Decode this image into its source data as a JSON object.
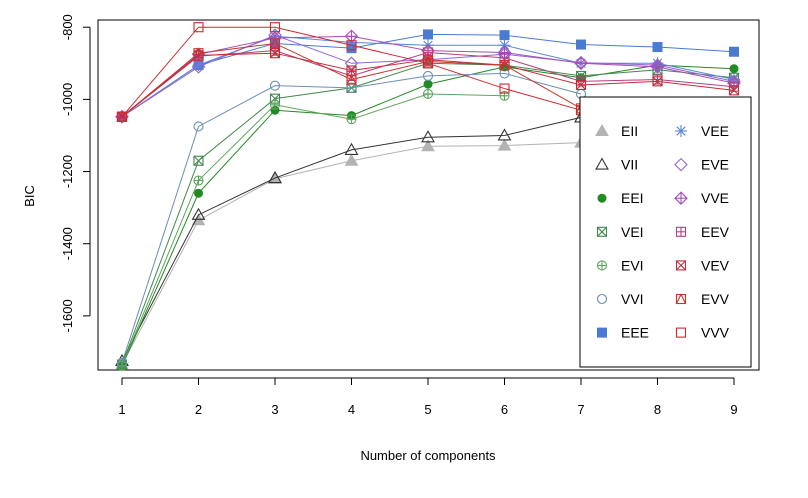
{
  "chart_data": {
    "type": "line",
    "title": "",
    "xlabel": "Number of components",
    "ylabel": "BIC",
    "x": [
      1,
      2,
      3,
      4,
      5,
      6,
      7,
      8,
      9
    ],
    "xlim": [
      1,
      9
    ],
    "ylim": [
      -1750,
      -780
    ],
    "yticks": [
      -1600,
      -1400,
      -1200,
      -1000,
      -800
    ],
    "yticklabels": [
      "-1600",
      "-1400",
      "-1200",
      "-1000",
      "-800"
    ],
    "xticklabels": [
      "1",
      "2",
      "3",
      "4",
      "5",
      "6",
      "7",
      "8",
      "9"
    ],
    "grid": false,
    "legend_position": "right",
    "series": [
      {
        "name": "EII",
        "color": "#b3b3b3",
        "marker": "triangle-filled",
        "values": [
          -1735,
          -1335,
          -1220,
          -1170,
          -1130,
          -1128,
          -1120,
          null,
          null
        ]
      },
      {
        "name": "VII",
        "color": "#333333",
        "marker": "triangle-open",
        "values": [
          -1725,
          -1320,
          -1218,
          -1140,
          -1105,
          -1100,
          -1050,
          null,
          null
        ]
      },
      {
        "name": "EEI",
        "color": "#218b21",
        "marker": "circle-filled",
        "values": [
          -1740,
          -1260,
          -1030,
          -1045,
          -958,
          -910,
          -940,
          -905,
          -915
        ]
      },
      {
        "name": "VEI",
        "color": "#41884f",
        "marker": "x-square",
        "values": [
          -1735,
          -1170,
          -998,
          -968,
          -900,
          -905,
          -935,
          -918,
          -940
        ]
      },
      {
        "name": "EVI",
        "color": "#5da55d",
        "marker": "plus-circle",
        "values": [
          -1738,
          -1225,
          -1015,
          -1055,
          -985,
          -990,
          null,
          null,
          null
        ]
      },
      {
        "name": "VVI",
        "color": "#6a8fb5",
        "marker": "circle-open",
        "values": [
          -1730,
          -1075,
          -962,
          -968,
          -935,
          -928,
          -985,
          null,
          null
        ]
      },
      {
        "name": "EEE",
        "color": "#4a7ad2",
        "marker": "square-filled",
        "values": [
          -1048,
          -905,
          -845,
          -858,
          -820,
          -822,
          -848,
          -855,
          -868
        ]
      },
      {
        "name": "VEE",
        "color": "#5b86d6",
        "marker": "asterisk",
        "values": [
          -1048,
          -905,
          -825,
          -842,
          -850,
          -850,
          -900,
          -900,
          -945
        ]
      },
      {
        "name": "EVE",
        "color": "#9065d6",
        "marker": "diamond-open",
        "values": [
          -1048,
          -910,
          -822,
          -900,
          -890,
          -875,
          -898,
          -905,
          -950
        ]
      },
      {
        "name": "VVE",
        "color": "#a64fb8",
        "marker": "plus-diamond",
        "values": [
          -1048,
          -875,
          -830,
          -825,
          -865,
          -870,
          -900,
          -910,
          -955
        ]
      },
      {
        "name": "EEV",
        "color": "#b5407a",
        "marker": "plus-square",
        "values": [
          -1048,
          -880,
          -865,
          -935,
          -870,
          -885,
          -950,
          -945,
          -965
        ]
      },
      {
        "name": "VEV",
        "color": "#c42c3a",
        "marker": "x-square",
        "values": [
          -1048,
          -878,
          -872,
          -920,
          -890,
          -905,
          -960,
          -950,
          -975
        ]
      },
      {
        "name": "EVV",
        "color": "#c8352b",
        "marker": "triangle-square",
        "values": [
          -1048,
          -872,
          -845,
          -945,
          -895,
          -905,
          -1025,
          null,
          null
        ]
      },
      {
        "name": "VVV",
        "color": "#d0282e",
        "marker": "square-open",
        "values": [
          -1048,
          -800,
          -800,
          -850,
          -900,
          -970,
          -1030,
          null,
          null
        ]
      }
    ]
  }
}
